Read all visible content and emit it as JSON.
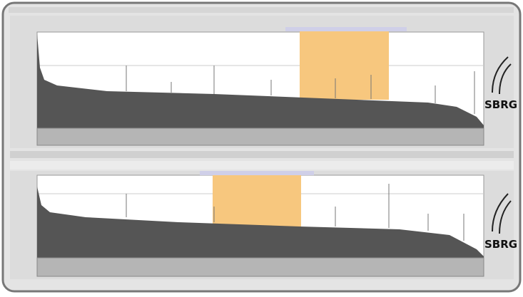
{
  "panels": [
    {
      "logo": "SBRG"
    },
    {
      "logo": "SBRG"
    }
  ]
}
